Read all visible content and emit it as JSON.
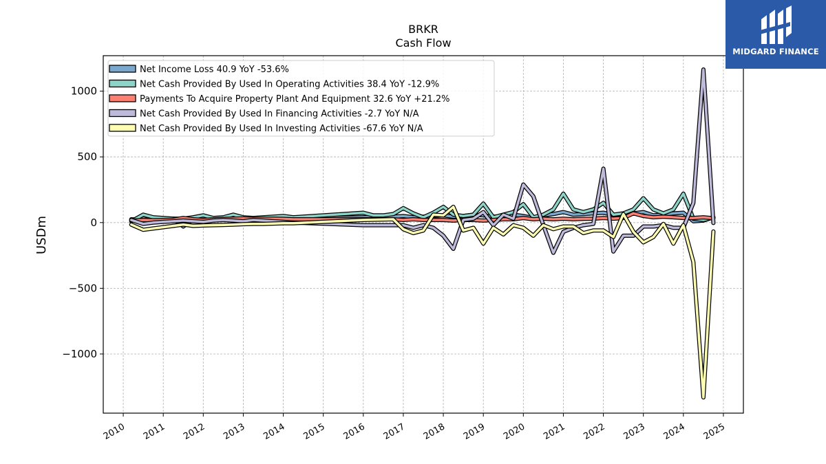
{
  "brand": {
    "name": "MIDGARD FINANCE",
    "logo_icon": "midgard-logo-icon",
    "background": "#2a5aa8"
  },
  "chart_data": {
    "type": "line",
    "title": "BRKR",
    "subtitle": "Cash Flow",
    "xlabel": "",
    "ylabel": "USDm",
    "xlim": [
      2009.5,
      2025.5
    ],
    "ylim": [
      -1450,
      1270
    ],
    "x_ticks": [
      "2010",
      "2011",
      "2012",
      "2013",
      "2014",
      "2015",
      "2016",
      "2017",
      "2018",
      "2019",
      "2020",
      "2021",
      "2022",
      "2023",
      "2024",
      "2025"
    ],
    "y_ticks": [
      {
        "value": -1000,
        "label": "−1000"
      },
      {
        "value": -500,
        "label": "−500"
      },
      {
        "value": 0,
        "label": "0"
      },
      {
        "value": 500,
        "label": "500"
      },
      {
        "value": 1000,
        "label": "1000"
      }
    ],
    "grid": true,
    "legend_position": "top-left",
    "series": [
      {
        "name": "Net Income Loss  40.9 YoY -53.6%",
        "color": "#7ba7cc",
        "points": [
          [
            2010.2,
            25
          ],
          [
            2010.5,
            22
          ],
          [
            2010.75,
            28
          ],
          [
            2011.0,
            20
          ],
          [
            2011.25,
            30
          ],
          [
            2011.5,
            -30
          ],
          [
            2011.75,
            25
          ],
          [
            2012.0,
            35
          ],
          [
            2012.25,
            30
          ],
          [
            2012.5,
            32
          ],
          [
            2012.75,
            28
          ],
          [
            2013.0,
            35
          ],
          [
            2013.25,
            30
          ],
          [
            2013.5,
            38
          ],
          [
            2013.75,
            32
          ],
          [
            2014.0,
            35
          ],
          [
            2014.25,
            30
          ],
          [
            2016.0,
            40
          ],
          [
            2016.75,
            45
          ],
          [
            2017.0,
            50
          ],
          [
            2017.25,
            40
          ],
          [
            2017.5,
            45
          ],
          [
            2017.75,
            50
          ],
          [
            2018.0,
            55
          ],
          [
            2018.25,
            45
          ],
          [
            2018.5,
            50
          ],
          [
            2018.75,
            60
          ],
          [
            2019.0,
            55
          ],
          [
            2019.25,
            45
          ],
          [
            2019.5,
            50
          ],
          [
            2019.75,
            60
          ],
          [
            2020.0,
            50
          ],
          [
            2020.25,
            35
          ],
          [
            2020.5,
            55
          ],
          [
            2020.75,
            65
          ],
          [
            2021.0,
            80
          ],
          [
            2021.25,
            60
          ],
          [
            2021.5,
            65
          ],
          [
            2021.75,
            70
          ],
          [
            2022.0,
            75
          ],
          [
            2022.25,
            60
          ],
          [
            2022.5,
            65
          ],
          [
            2022.75,
            70
          ],
          [
            2023.0,
            80
          ],
          [
            2023.25,
            55
          ],
          [
            2023.5,
            60
          ],
          [
            2023.75,
            70
          ],
          [
            2024.0,
            75
          ],
          [
            2024.25,
            10
          ],
          [
            2024.5,
            15
          ],
          [
            2024.75,
            41
          ]
        ]
      },
      {
        "name": "Net Cash Provided By Used In Operating Activities  38.4 YoY -12.9%",
        "color": "#8dd3c7",
        "points": [
          [
            2010.2,
            10
          ],
          [
            2010.5,
            60
          ],
          [
            2010.75,
            40
          ],
          [
            2011.0,
            35
          ],
          [
            2011.25,
            30
          ],
          [
            2011.5,
            30
          ],
          [
            2011.75,
            40
          ],
          [
            2012.0,
            55
          ],
          [
            2012.25,
            35
          ],
          [
            2012.5,
            40
          ],
          [
            2012.75,
            60
          ],
          [
            2013.0,
            40
          ],
          [
            2013.25,
            35
          ],
          [
            2013.5,
            40
          ],
          [
            2013.75,
            45
          ],
          [
            2014.0,
            50
          ],
          [
            2014.25,
            40
          ],
          [
            2016.0,
            75
          ],
          [
            2016.25,
            55
          ],
          [
            2016.5,
            55
          ],
          [
            2016.75,
            65
          ],
          [
            2017.0,
            110
          ],
          [
            2017.25,
            70
          ],
          [
            2017.5,
            40
          ],
          [
            2017.75,
            75
          ],
          [
            2018.0,
            120
          ],
          [
            2018.25,
            60
          ],
          [
            2018.5,
            50
          ],
          [
            2018.75,
            60
          ],
          [
            2019.0,
            145
          ],
          [
            2019.25,
            40
          ],
          [
            2019.5,
            60
          ],
          [
            2019.75,
            80
          ],
          [
            2020.0,
            140
          ],
          [
            2020.25,
            40
          ],
          [
            2020.5,
            60
          ],
          [
            2020.75,
            100
          ],
          [
            2021.0,
            220
          ],
          [
            2021.25,
            100
          ],
          [
            2021.5,
            80
          ],
          [
            2021.75,
            100
          ],
          [
            2022.0,
            150
          ],
          [
            2022.25,
            60
          ],
          [
            2022.5,
            70
          ],
          [
            2022.75,
            100
          ],
          [
            2023.0,
            185
          ],
          [
            2023.25,
            100
          ],
          [
            2023.5,
            70
          ],
          [
            2023.75,
            100
          ],
          [
            2024.0,
            220
          ],
          [
            2024.25,
            30
          ],
          [
            2024.5,
            20
          ],
          [
            2024.75,
            38
          ]
        ]
      },
      {
        "name": "Payments To Acquire Property Plant And Equipment  32.6 YoY +21.2%",
        "color": "#fb8072",
        "points": [
          [
            2010.2,
            15
          ],
          [
            2010.5,
            20
          ],
          [
            2010.75,
            18
          ],
          [
            2011.0,
            20
          ],
          [
            2011.25,
            22
          ],
          [
            2011.5,
            35
          ],
          [
            2011.75,
            25
          ],
          [
            2012.0,
            20
          ],
          [
            2012.25,
            25
          ],
          [
            2012.5,
            28
          ],
          [
            2012.75,
            30
          ],
          [
            2013.0,
            32
          ],
          [
            2013.25,
            28
          ],
          [
            2013.5,
            30
          ],
          [
            2013.75,
            30
          ],
          [
            2014.0,
            28
          ],
          [
            2014.25,
            25
          ],
          [
            2016.0,
            25
          ],
          [
            2016.75,
            25
          ],
          [
            2017.0,
            20
          ],
          [
            2017.25,
            25
          ],
          [
            2017.5,
            20
          ],
          [
            2017.75,
            20
          ],
          [
            2018.0,
            20
          ],
          [
            2018.25,
            15
          ],
          [
            2018.5,
            20
          ],
          [
            2018.75,
            20
          ],
          [
            2019.0,
            15
          ],
          [
            2019.25,
            20
          ],
          [
            2019.5,
            25
          ],
          [
            2019.75,
            25
          ],
          [
            2020.0,
            35
          ],
          [
            2020.25,
            25
          ],
          [
            2020.5,
            30
          ],
          [
            2020.75,
            25
          ],
          [
            2021.0,
            30
          ],
          [
            2021.25,
            25
          ],
          [
            2021.5,
            28
          ],
          [
            2021.75,
            30
          ],
          [
            2022.0,
            35
          ],
          [
            2022.25,
            30
          ],
          [
            2022.5,
            35
          ],
          [
            2022.75,
            70
          ],
          [
            2023.0,
            50
          ],
          [
            2023.25,
            40
          ],
          [
            2023.5,
            45
          ],
          [
            2023.75,
            40
          ],
          [
            2024.0,
            35
          ],
          [
            2024.25,
            35
          ],
          [
            2024.5,
            40
          ],
          [
            2024.75,
            33
          ]
        ]
      },
      {
        "name": "Net Cash Provided By Used In Financing Activities  -2.7 YoY N/A",
        "color": "#bebada",
        "points": [
          [
            2010.2,
            20
          ],
          [
            2010.5,
            -10
          ],
          [
            2010.75,
            0
          ],
          [
            2011.0,
            5
          ],
          [
            2011.25,
            10
          ],
          [
            2011.5,
            15
          ],
          [
            2011.75,
            10
          ],
          [
            2012.0,
            5
          ],
          [
            2012.25,
            15
          ],
          [
            2012.5,
            20
          ],
          [
            2012.75,
            15
          ],
          [
            2013.0,
            10
          ],
          [
            2013.25,
            20
          ],
          [
            2013.5,
            15
          ],
          [
            2013.75,
            10
          ],
          [
            2014.0,
            5
          ],
          [
            2014.25,
            0
          ],
          [
            2016.0,
            -20
          ],
          [
            2016.75,
            -20
          ],
          [
            2017.0,
            -20
          ],
          [
            2017.25,
            -40
          ],
          [
            2017.5,
            -20
          ],
          [
            2017.75,
            -40
          ],
          [
            2018.0,
            -100
          ],
          [
            2018.25,
            -200
          ],
          [
            2018.5,
            20
          ],
          [
            2018.75,
            30
          ],
          [
            2019.0,
            80
          ],
          [
            2019.25,
            -20
          ],
          [
            2019.5,
            60
          ],
          [
            2019.75,
            30
          ],
          [
            2020.0,
            290
          ],
          [
            2020.25,
            200
          ],
          [
            2020.5,
            -20
          ],
          [
            2020.75,
            -230
          ],
          [
            2021.0,
            -70
          ],
          [
            2021.25,
            -40
          ],
          [
            2021.5,
            -20
          ],
          [
            2021.75,
            -10
          ],
          [
            2022.0,
            410
          ],
          [
            2022.25,
            -220
          ],
          [
            2022.5,
            -100
          ],
          [
            2022.75,
            -100
          ],
          [
            2023.0,
            -30
          ],
          [
            2023.25,
            -30
          ],
          [
            2023.5,
            -20
          ],
          [
            2023.75,
            -40
          ],
          [
            2024.0,
            -40
          ],
          [
            2024.25,
            150
          ],
          [
            2024.5,
            1165
          ],
          [
            2024.75,
            -3
          ]
        ]
      },
      {
        "name": "Net Cash Provided By Used In Investing Activities  -67.6 YoY N/A",
        "color": "#ffffb3",
        "points": [
          [
            2010.2,
            -15
          ],
          [
            2010.5,
            -55
          ],
          [
            2010.75,
            -45
          ],
          [
            2011.0,
            -35
          ],
          [
            2011.25,
            -25
          ],
          [
            2011.5,
            -15
          ],
          [
            2011.75,
            -25
          ],
          [
            2012.0,
            -22
          ],
          [
            2012.25,
            -20
          ],
          [
            2012.5,
            -18
          ],
          [
            2012.75,
            -15
          ],
          [
            2013.0,
            -12
          ],
          [
            2013.25,
            -10
          ],
          [
            2013.5,
            -10
          ],
          [
            2013.75,
            -8
          ],
          [
            2014.0,
            -5
          ],
          [
            2014.25,
            -5
          ],
          [
            2016.0,
            20
          ],
          [
            2016.75,
            25
          ],
          [
            2017.0,
            -50
          ],
          [
            2017.25,
            -80
          ],
          [
            2017.5,
            -60
          ],
          [
            2017.75,
            60
          ],
          [
            2018.0,
            55
          ],
          [
            2018.25,
            120
          ],
          [
            2018.5,
            -60
          ],
          [
            2018.75,
            -40
          ],
          [
            2019.0,
            -160
          ],
          [
            2019.25,
            -40
          ],
          [
            2019.5,
            -90
          ],
          [
            2019.75,
            -20
          ],
          [
            2020.0,
            -40
          ],
          [
            2020.25,
            -100
          ],
          [
            2020.5,
            -20
          ],
          [
            2020.75,
            -50
          ],
          [
            2021.0,
            -30
          ],
          [
            2021.25,
            -30
          ],
          [
            2021.5,
            -80
          ],
          [
            2021.75,
            -60
          ],
          [
            2022.0,
            -60
          ],
          [
            2022.25,
            -110
          ],
          [
            2022.5,
            65
          ],
          [
            2022.75,
            -70
          ],
          [
            2023.0,
            -150
          ],
          [
            2023.25,
            -110
          ],
          [
            2023.5,
            -10
          ],
          [
            2023.75,
            -160
          ],
          [
            2024.0,
            -20
          ],
          [
            2024.25,
            -300
          ],
          [
            2024.5,
            -1330
          ],
          [
            2024.75,
            -68
          ]
        ]
      }
    ]
  }
}
